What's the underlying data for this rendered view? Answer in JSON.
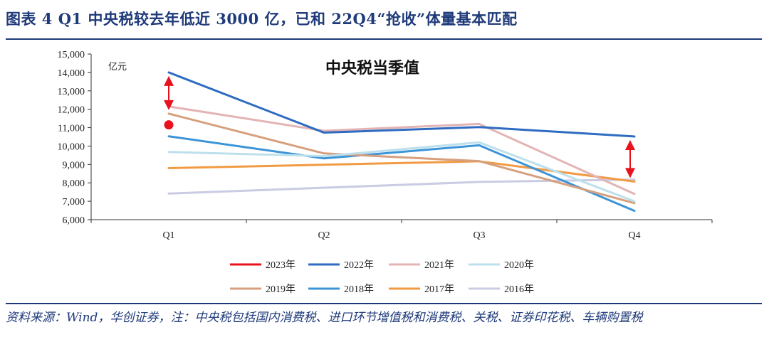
{
  "header": {
    "title": "图表 4 Q1 中央税较去年低近 3000 亿，已和 22Q4“抢收”体量基本匹配"
  },
  "footer": {
    "source": "资料来源：Wind，华创证券，注：中央税包括国内消费税、进口环节增值税和消费税、关税、证券印花税、车辆购置税"
  },
  "chart_data": {
    "type": "line",
    "title": "中央税当季值",
    "unit_label": "亿元",
    "categories": [
      "Q1",
      "Q2",
      "Q3",
      "Q4"
    ],
    "ylim": [
      6000,
      15000
    ],
    "yticks": [
      {
        "value": 6000,
        "label": "6,000"
      },
      {
        "value": 7000,
        "label": "7,000"
      },
      {
        "value": 8000,
        "label": "8,000"
      },
      {
        "value": 9000,
        "label": "9,000"
      },
      {
        "value": 10000,
        "label": "10,000"
      },
      {
        "value": 11000,
        "label": "11,000"
      },
      {
        "value": 12000,
        "label": "12,000"
      },
      {
        "value": 13000,
        "label": "13,000"
      },
      {
        "value": 14000,
        "label": "14,000"
      },
      {
        "value": 15000,
        "label": "15,000"
      }
    ],
    "grid": false,
    "legend_position": "bottom",
    "series": [
      {
        "name": "2023年",
        "color": "#e8111d",
        "marker": "dot",
        "values": [
          11150,
          null,
          null,
          null
        ]
      },
      {
        "name": "2022年",
        "color": "#2e6bc1",
        "values": [
          14000,
          10730,
          11030,
          10520
        ]
      },
      {
        "name": "2021年",
        "color": "#e4b4b4",
        "values": [
          12150,
          10830,
          11200,
          7400
        ]
      },
      {
        "name": "2020年",
        "color": "#bde0ec",
        "values": [
          9680,
          9450,
          10200,
          7000
        ]
      },
      {
        "name": "2019年",
        "color": "#d6a07e",
        "values": [
          11760,
          9600,
          9180,
          6900
        ]
      },
      {
        "name": "2018年",
        "color": "#3c94d8",
        "values": [
          10530,
          9330,
          10040,
          6480
        ]
      },
      {
        "name": "2017年",
        "color": "#f29a43",
        "values": [
          8800,
          null,
          9170,
          8070
        ]
      },
      {
        "name": "2016年",
        "color": "#c9cce2",
        "values": [
          7420,
          null,
          8050,
          8180
        ]
      }
    ],
    "annotations": [
      {
        "type": "double-arrow",
        "color": "#e8111d",
        "category": "Q1",
        "from": 14000,
        "to": 11760
      },
      {
        "type": "double-arrow",
        "color": "#e8111d",
        "category": "Q4",
        "from": 10520,
        "to": 8070
      }
    ]
  }
}
